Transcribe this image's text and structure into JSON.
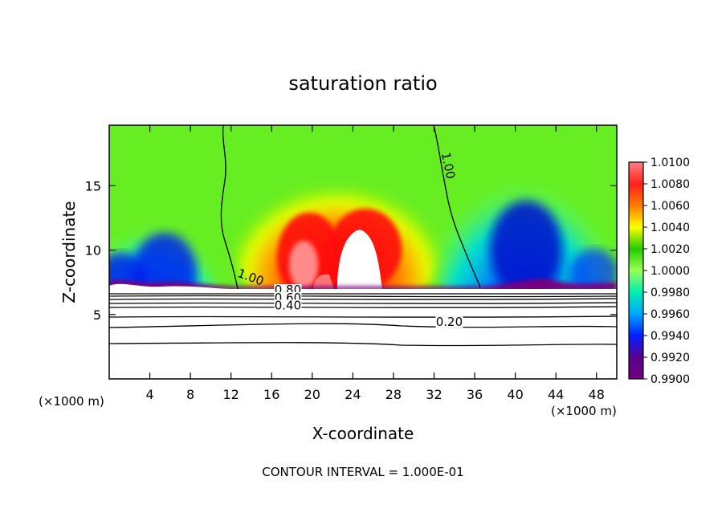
{
  "chart_data": {
    "type": "heatmap",
    "title": "saturation ratio",
    "xlabel": "X-coordinate",
    "ylabel": "Z-coordinate",
    "x_unit_label_left": "(×1000 m)",
    "x_unit_label_right": "(×1000 m)",
    "xlim": [
      0,
      50
    ],
    "ylim": [
      0,
      19.7
    ],
    "x_ticks": [
      4,
      8,
      12,
      16,
      20,
      24,
      28,
      32,
      36,
      40,
      44,
      48
    ],
    "y_ticks": [
      5,
      10,
      15
    ],
    "footer": "CONTOUR INTERVAL = 1.000E-01",
    "colorbar": {
      "labels": [
        "1.0100",
        "1.0080",
        "1.0060",
        "1.0040",
        "1.0020",
        "1.0000",
        "0.9980",
        "0.9960",
        "0.9940",
        "0.9920",
        "0.9900"
      ],
      "values": [
        1.01,
        1.008,
        1.006,
        1.004,
        1.002,
        1.0,
        0.998,
        0.996,
        0.994,
        0.992,
        0.99
      ],
      "colors": [
        "#ff8080",
        "#ff2020",
        "#ff7a00",
        "#ffff00",
        "#22cc00",
        "#99ff55",
        "#00eeb0",
        "#00a8ff",
        "#0020ff",
        "#5a0090",
        "#700080"
      ]
    },
    "contour_labels": [
      {
        "text": "1.00",
        "x": 33,
        "y": 16.5
      },
      {
        "text": "1.00",
        "x": 13.8,
        "y": 7.6
      },
      {
        "text": "0.80",
        "x": 17.6,
        "y": 6.6
      },
      {
        "text": "0.60",
        "x": 17.6,
        "y": 6.0
      },
      {
        "text": "0.40",
        "x": 17.6,
        "y": 5.4
      },
      {
        "text": "0.20",
        "x": 33.5,
        "y": 4.1
      }
    ],
    "contour_levels": [
      0.2,
      0.4,
      0.6,
      0.8,
      1.0
    ],
    "contour_interval": 0.1
  }
}
